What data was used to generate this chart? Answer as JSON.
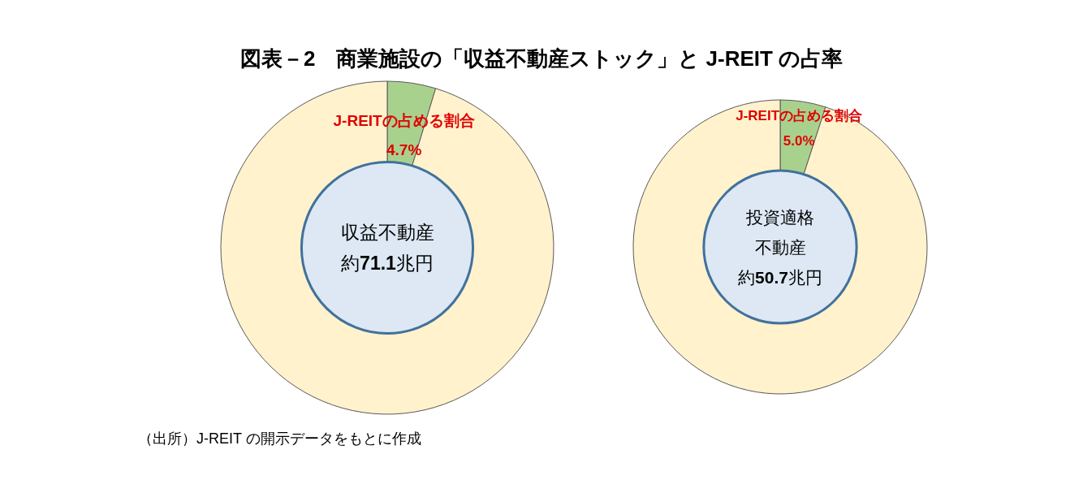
{
  "chart_data": [
    {
      "type": "donut",
      "title": "図表－2　商業施設の「収益不動産ストック」と J-REIT の占率",
      "categories": [
        "J-REITの占める割合",
        null
      ],
      "values": [
        4.7,
        95.3
      ],
      "colors": [
        "#a9d18e",
        "#fff2cc"
      ],
      "value_labels": [
        "4.7%",
        null
      ],
      "annotations": [
        "収益不動産",
        "約71.1兆円"
      ]
    },
    {
      "type": "donut",
      "categories": [
        "J-REITの占める割合",
        null
      ],
      "values": [
        5.0,
        95.0
      ],
      "colors": [
        "#a9d18e",
        "#fff2cc"
      ],
      "value_labels": [
        "5.0%",
        null
      ],
      "annotations": [
        "投資適格",
        "不動産",
        "約50.7兆円"
      ]
    },
    {
      "type": "other",
      "annotations": [
        "（出所）J-REIT の開示データをもとに作成"
      ]
    }
  ]
}
